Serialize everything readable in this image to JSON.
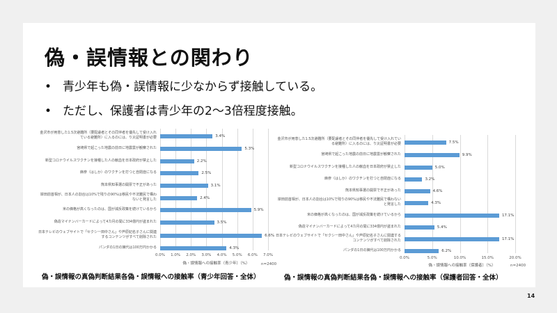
{
  "slide": {
    "title": "偽・誤情報との関わり",
    "bullets": [
      "青少年も偽・誤情報に少なからず接触している。",
      "ただし、保護者は青少年の2〜3倍程度接触。"
    ],
    "page_number": "14"
  },
  "chart_data": [
    {
      "type": "bar",
      "orientation": "horizontal",
      "categories": [
        "金沢市が用意した1.5次避難所（要配慮者とその同伴者を優先して受け入れている避難所）に入るのには、り災証明書が必要",
        "宮崎県で起こった地震の前日に地震雲が観察された",
        "新型コロナウイルスワクチンを接種した人の献血を日本政府が禁止した",
        "麻疹（はしか）のワクチンを打つと自閉症になる",
        "熊本県知事選の開票で不正があった",
        "岸田前首相が、日本人の割合は10%で残りの90%は移民や不法難民で構わないと発言した",
        "米の価格が高くなったのは、国が減反政策を続けているから",
        "偽造マイナンバーカードによって4カ月の間に334億円が盗まれた",
        "日本テレビのウェブサイトで「セクシー田中さん」や芦原妃名子さんに関連するコンテンツがすべて削除された",
        "パンダの1日の餌代は100万円かかる"
      ],
      "values": [
        3.4,
        5.3,
        2.2,
        2.5,
        3.1,
        2.4,
        5.9,
        3.5,
        6.6,
        4.3
      ],
      "value_labels": [
        "3.4%",
        "5.3%",
        "2.2%",
        "2.5%",
        "3.1%",
        "2.4%",
        "5.9%",
        "3.5%",
        "6.6%",
        "4.3%"
      ],
      "xlim": [
        0,
        7
      ],
      "ticks": [
        "0.0%",
        "1.0%",
        "2.0%",
        "3.0%",
        "4.0%",
        "5.0%",
        "6.0%",
        "7.0%"
      ],
      "xlabel": "偽・誤情報への接触率（青少年）（%）",
      "note": "n=2400",
      "title": "偽・誤情報の真偽判断結果各偽・誤情報への接触率（青少年回答・全体）",
      "color": "#5b9bd5",
      "grid": true
    },
    {
      "type": "bar",
      "orientation": "horizontal",
      "categories": [
        "金沢市が用意した1.5次避難所（要配慮者とその同伴者を優先して受け入れている避難所）に入るのには、り災証明書が必要",
        "宮崎県で起こった地震の前日に地震雲が観察された",
        "新型コロナウイルスワクチンを接種した人の献血を日本政府が禁止した",
        "麻疹（はしか）のワクチンを打つと自閉症になる",
        "熊本県知事選の開票で不正があった",
        "岸田前首相が、日本人の割合は10%で残りの90%は移民や不法難民で構わないと発言した",
        "米の価格が高くなったのは、国が減反政策を続けているから",
        "偽造マイナンバーカードによって4カ月の間に334億円が盗まれた",
        "日本テレビのウェブサイトで「セクシー田中さん」や芦原妃名子さんに関連するコンテンツがすべて削除された",
        "パンダの1日の餌代は100万円かかる"
      ],
      "values": [
        7.5,
        9.9,
        5.0,
        3.2,
        4.6,
        4.3,
        17.1,
        5.4,
        17.1,
        6.2
      ],
      "value_labels": [
        "7.5%",
        "9.9%",
        "5.0%",
        "3.2%",
        "4.6%",
        "4.3%",
        "17.1%",
        "5.4%",
        "17.1%",
        "6.2%"
      ],
      "xlim": [
        0,
        20
      ],
      "ticks": [
        "0.0%",
        "5.0%",
        "10.0%",
        "15.0%",
        "20.0%"
      ],
      "xlabel": "偽・誤情報への接触率（保護者）（%）",
      "note": "n=2400",
      "title": "偽・誤情報の真偽判断結果各偽・誤情報への接触率（保護者回答・全体）",
      "color": "#5b9bd5",
      "grid": true
    }
  ]
}
